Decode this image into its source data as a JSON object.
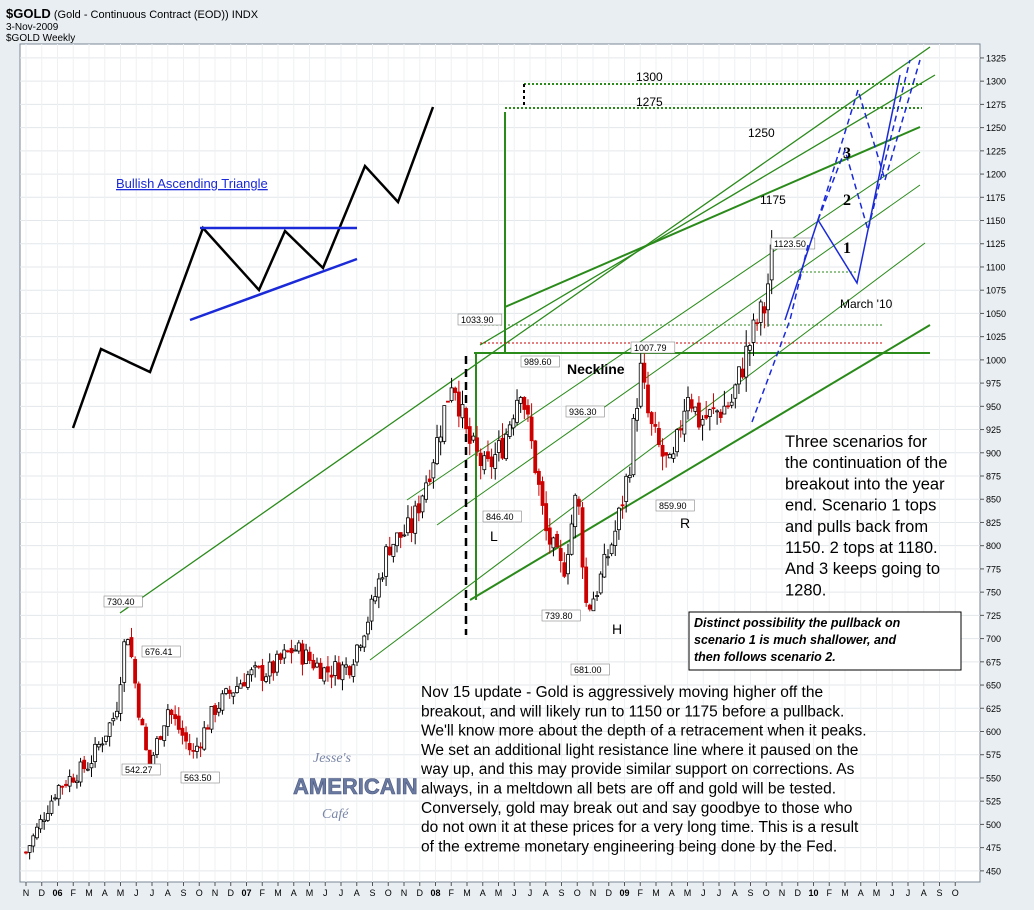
{
  "header": {
    "symbol": "$GOLD",
    "description": "(Gold - Continuous Contract (EOD))",
    "exchange": "INDX",
    "date": "3-Nov-2009",
    "legend": "$GOLD  Weekly"
  },
  "colors": {
    "plot_bg": "#ffffff",
    "chrome_bg": "#e9eef2",
    "candle_up": "#000000",
    "candle_down": "#cc0000",
    "channel": "#2a8a1a",
    "triangle_lines": "#1a2ad8",
    "scenario_path": "#1a2ad8"
  },
  "chart_data": {
    "type": "candlestick",
    "title": "$GOLD (Gold - Continuous Contract (EOD)) INDX",
    "interval": "Weekly",
    "ylim": [
      438,
      1340
    ],
    "y_ticks": [
      450,
      475,
      500,
      525,
      550,
      575,
      600,
      625,
      650,
      675,
      700,
      725,
      750,
      775,
      800,
      825,
      850,
      875,
      900,
      925,
      950,
      975,
      1000,
      1025,
      1050,
      1075,
      1100,
      1125,
      1150,
      1175,
      1200,
      1225,
      1250,
      1275,
      1300,
      1325
    ],
    "x_ticks": [
      "N",
      "D",
      "06",
      "F",
      "M",
      "A",
      "M",
      "J",
      "J",
      "A",
      "S",
      "O",
      "N",
      "D",
      "07",
      "F",
      "M",
      "A",
      "M",
      "J",
      "J",
      "A",
      "S",
      "O",
      "N",
      "D",
      "08",
      "F",
      "M",
      "A",
      "M",
      "J",
      "J",
      "A",
      "S",
      "O",
      "N",
      "D",
      "09",
      "F",
      "M",
      "A",
      "M",
      "J",
      "J",
      "A",
      "S",
      "O",
      "N",
      "D",
      "10",
      "F",
      "M",
      "A",
      "M",
      "J",
      "J",
      "A",
      "S",
      "O"
    ],
    "anchors": [
      {
        "m": 0,
        "v": 470
      },
      {
        "m": 2,
        "v": 540
      },
      {
        "m": 4,
        "v": 565
      },
      {
        "m": 5.7,
        "v": 620
      },
      {
        "m": 6.4,
        "v": 715
      },
      {
        "m": 7.2,
        "v": 620
      },
      {
        "m": 7.8,
        "v": 560
      },
      {
        "m": 9,
        "v": 625
      },
      {
        "m": 10.6,
        "v": 575
      },
      {
        "m": 12,
        "v": 625
      },
      {
        "m": 14,
        "v": 660
      },
      {
        "m": 15.5,
        "v": 665
      },
      {
        "m": 17,
        "v": 690
      },
      {
        "m": 19,
        "v": 665
      },
      {
        "m": 20.5,
        "v": 670
      },
      {
        "m": 22,
        "v": 735
      },
      {
        "m": 23,
        "v": 800
      },
      {
        "m": 24.5,
        "v": 820
      },
      {
        "m": 26,
        "v": 905
      },
      {
        "m": 27.1,
        "v": 985
      },
      {
        "m": 28,
        "v": 915
      },
      {
        "m": 29.2,
        "v": 880
      },
      {
        "m": 30.3,
        "v": 910
      },
      {
        "m": 31.4,
        "v": 975
      },
      {
        "m": 32.3,
        "v": 890
      },
      {
        "m": 33,
        "v": 815
      },
      {
        "m": 34.1,
        "v": 770
      },
      {
        "m": 35,
        "v": 860
      },
      {
        "m": 35.6,
        "v": 730
      },
      {
        "m": 36.3,
        "v": 755
      },
      {
        "m": 37.5,
        "v": 820
      },
      {
        "m": 38.3,
        "v": 885
      },
      {
        "m": 39,
        "v": 990
      },
      {
        "m": 39.6,
        "v": 930
      },
      {
        "m": 40.3,
        "v": 900
      },
      {
        "m": 41,
        "v": 880
      },
      {
        "m": 42,
        "v": 970
      },
      {
        "m": 42.7,
        "v": 935
      },
      {
        "m": 43.5,
        "v": 940
      },
      {
        "m": 44.8,
        "v": 955
      },
      {
        "m": 45.6,
        "v": 1000
      },
      {
        "m": 46.4,
        "v": 1040
      },
      {
        "m": 47,
        "v": 1060
      },
      {
        "m": 47.25,
        "v": 1110
      }
    ],
    "labeled_points": [
      {
        "label": "730.40",
        "v": 730.4
      },
      {
        "label": "542.27",
        "v": 542.27
      },
      {
        "label": "676.41",
        "v": 676.41
      },
      {
        "label": "563.50",
        "v": 563.5
      },
      {
        "label": "1033.90",
        "v": 1033.9
      },
      {
        "label": "846.40",
        "v": 846.4
      },
      {
        "label": "989.60",
        "v": 989.6
      },
      {
        "label": "936.30",
        "v": 936.3
      },
      {
        "label": "739.80",
        "v": 739.8
      },
      {
        "label": "681.00",
        "v": 681.0
      },
      {
        "label": "1007.79",
        "v": 1007.79
      },
      {
        "label": "859.90",
        "v": 859.9
      },
      {
        "label": "1123.50",
        "v": 1123.5
      }
    ],
    "levels": [
      {
        "label": "1300",
        "v": 1300
      },
      {
        "label": "1275",
        "v": 1275
      },
      {
        "label": "1250",
        "v": 1250
      },
      {
        "label": "1175",
        "v": 1175
      }
    ],
    "pattern_labels": [
      "L",
      "H",
      "R",
      "Neckline"
    ],
    "scenario_labels": [
      "1",
      "2",
      "3",
      "March '10"
    ],
    "inset_label": "Bullish Ascending Triangle"
  },
  "annotations": {
    "scenarios_text": [
      "Three scenarios for",
      "the continuation of the",
      "breakout into the year",
      "end.  Scenario 1 tops",
      "and pulls back from",
      "1150.  2 tops at 1180.",
      " And 3 keeps going to",
      "1280."
    ],
    "box_text": [
      "Distinct possibility the pullback on",
      "scenario 1 is much shallower, and",
      "then follows scenario 2."
    ],
    "update_text": [
      "Nov 15 update - Gold is aggressively moving higher off the",
      "breakout, and will likely run to 1150 or 1175 before a pullback.",
      "We'll know more about the depth of a retracement when it peaks.",
      "We set an additional light resistance line where it paused on the",
      "way up, and this may provide similar support on corrections.  As",
      "always, in a meltdown all bets are off and gold will be tested.",
      "Conversely, gold may break out and say goodbye to those who",
      "do not own it at these prices for a very long time.  This is a result",
      "of the extreme monetary engineering being done by the Fed."
    ]
  },
  "logo": {
    "line1": "Jesse's",
    "line2": "AMERICAIN",
    "line3": "Café"
  }
}
